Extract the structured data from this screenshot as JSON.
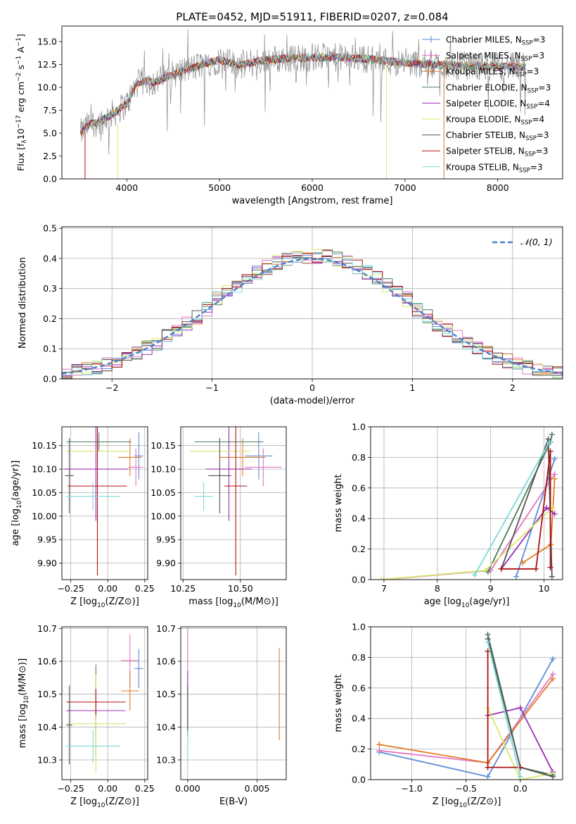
{
  "colors": {
    "chabrier_miles": "#5b8ed6",
    "salpeter_miles": "#e377c2",
    "kroupa_miles": "#e07b27",
    "chabrier_elodie": "#4a7a5a",
    "salpeter_elodie": "#9b30b0",
    "kroupa_elodie": "#d8e86a",
    "chabrier_stelib": "#555555",
    "salpeter_stelib": "#b01010",
    "kroupa_stelib": "#7dd8d8",
    "grid": "#b0b0b0",
    "gauss": "#4a7fd0"
  },
  "chart_data": [
    {
      "id": "spectrum",
      "type": "line",
      "title": "PLATE=0452, MJD=51911, FIBERID=0207, z=0.084",
      "xlabel": "wavelength [Angstrom, rest frame]",
      "ylabel": "Flux [f_λ10^-17 erg cm^-2 s^-1 A^-1]",
      "xlim": [
        3300,
        8700
      ],
      "ylim": [
        0,
        16.7
      ],
      "xticks": [
        4000,
        5000,
        6000,
        7000,
        8000
      ],
      "yticks": [
        0.0,
        2.5,
        5.0,
        7.5,
        10.0,
        12.5,
        15.0
      ],
      "grid": false,
      "legend_position": "right",
      "legend": [
        {
          "key": "chabrier_miles",
          "label": "Chabrier MILES, N",
          "sub": "SSP",
          "tail": "=3"
        },
        {
          "key": "salpeter_miles",
          "label": "Salpeter MILES, N",
          "sub": "SSP",
          "tail": "=3"
        },
        {
          "key": "kroupa_miles",
          "label": "Kroupa MILES, N",
          "sub": "SSP",
          "tail": "=3"
        },
        {
          "key": "chabrier_elodie",
          "label": "Chabrier ELODIE, N",
          "sub": "SSP",
          "tail": "=3"
        },
        {
          "key": "salpeter_elodie",
          "label": "Salpeter ELODIE, N",
          "sub": "SSP",
          "tail": "=4"
        },
        {
          "key": "kroupa_elodie",
          "label": "Kroupa ELODIE, N",
          "sub": "SSP",
          "tail": "=4"
        },
        {
          "key": "chabrier_stelib",
          "label": "Chabrier STELIB, N",
          "sub": "SSP",
          "tail": "=3"
        },
        {
          "key": "salpeter_stelib",
          "label": "Salpeter STELIB, N",
          "sub": "SSP",
          "tail": "=3"
        },
        {
          "key": "kroupa_stelib",
          "label": "Kroupa STELIB, N",
          "sub": "SSP",
          "tail": "=3"
        }
      ],
      "continuum": {
        "x": [
          3500,
          3600,
          3700,
          3800,
          3900,
          4000,
          4100,
          4200,
          4300,
          4400,
          4600,
          4800,
          5000,
          5200,
          5500,
          6000,
          6500,
          7000,
          7500,
          8000,
          8300
        ],
        "y": [
          5.0,
          6.0,
          6.2,
          6.8,
          7.5,
          8.2,
          10.3,
          10.8,
          10.5,
          11.0,
          11.8,
          12.4,
          13.0,
          12.4,
          13.0,
          13.3,
          13.2,
          12.7,
          12.4,
          12.3,
          12.2
        ]
      },
      "verticals": [
        {
          "x": 3550,
          "y0": 0,
          "y1": 5,
          "key": "salpeter_stelib"
        },
        {
          "x": 3900,
          "y0": 0,
          "y1": 6,
          "key": "kroupa_elodie"
        },
        {
          "x": 6800,
          "y0": 0,
          "y1": 13,
          "key": "kroupa_elodie"
        },
        {
          "x": 7420,
          "y0": 0,
          "y1": 13,
          "key": "kroupa_miles"
        }
      ]
    },
    {
      "id": "residuals",
      "type": "line",
      "xlabel": "(data-model)/error",
      "ylabel": "Normed distribution",
      "xlim": [
        -2.5,
        2.5
      ],
      "ylim": [
        0,
        0.505
      ],
      "xticks": [
        -2,
        -1,
        0,
        1,
        2
      ],
      "yticks": [
        0.0,
        0.1,
        0.2,
        0.3,
        0.4,
        0.5
      ],
      "grid": true,
      "legend_position": "top-right",
      "legend": [
        {
          "key": "gauss",
          "label": "𝒩(0, 1)"
        }
      ],
      "bin_width": 0.1,
      "bin_start": -2.5
    },
    {
      "id": "age_vs_Z",
      "type": "scatter",
      "xlabel": "Z [log10(Z/Z⊙)]",
      "ylabel": "age  [log10(age/yr)]",
      "xlim": [
        -0.31,
        0.27
      ],
      "ylim": [
        9.865,
        10.19
      ],
      "xticks": [
        -0.25,
        0.0,
        0.25
      ],
      "xticklabels": [
        "−0.25",
        "0.00",
        "0.25"
      ],
      "yticks": [
        9.9,
        9.95,
        10.0,
        10.05,
        10.1,
        10.15
      ],
      "yticklabels": [
        "9.90",
        "9.95",
        "10.00",
        "10.05",
        "10.10",
        "10.15"
      ],
      "grid": true,
      "points": [
        {
          "key": "chabrier_miles",
          "x": 0.21,
          "xerr": 0.03,
          "y": 10.128,
          "yerr": 0.05
        },
        {
          "key": "salpeter_miles",
          "x": 0.19,
          "xerr": 0.05,
          "y": 10.104,
          "yerr": 0.04
        },
        {
          "key": "kroupa_miles",
          "x": 0.15,
          "xerr": 0.08,
          "y": 10.125,
          "yerr": 0.04
        },
        {
          "key": "chabrier_elodie",
          "x": -0.06,
          "xerr": 0.22,
          "y": 10.158,
          "yerr": 0.02
        },
        {
          "key": "salpeter_elodie",
          "x": -0.08,
          "xerr": 0.22,
          "y": 10.1,
          "yerr": 0.11
        },
        {
          "key": "kroupa_elodie",
          "x": -0.07,
          "xerr": 0.21,
          "y": 10.138,
          "yerr": 0.03
        },
        {
          "key": "chabrier_stelib",
          "x": -0.26,
          "xerr": 0.03,
          "y": 10.086,
          "yerr": 0.08
        },
        {
          "key": "salpeter_stelib",
          "x": -0.07,
          "xerr": 0.2,
          "y": 10.064,
          "yerr": 0.19
        },
        {
          "key": "kroupa_stelib",
          "x": -0.1,
          "xerr": 0.18,
          "y": 10.042,
          "yerr": 0.03
        }
      ]
    },
    {
      "id": "age_vs_mass",
      "type": "scatter",
      "xlabel": "mass [log10(M/M⊙)]",
      "xlim": [
        10.24,
        10.7
      ],
      "ylim": [
        9.865,
        10.19
      ],
      "xticks": [
        10.25,
        10.5
      ],
      "xticklabels": [
        "10.25",
        "10.50"
      ],
      "yticks": [
        9.9,
        9.95,
        10.0,
        10.05,
        10.1,
        10.15
      ],
      "yticklabels": [
        "9.90",
        "9.95",
        "10.00",
        "10.05",
        "10.10",
        "10.15"
      ],
      "grid": true,
      "points": [
        {
          "key": "chabrier_miles",
          "x": 10.58,
          "xerr": 0.06,
          "y": 10.128,
          "yerr": 0.05
        },
        {
          "key": "salpeter_miles",
          "x": 10.6,
          "xerr": 0.08,
          "y": 10.104,
          "yerr": 0.04
        },
        {
          "key": "kroupa_miles",
          "x": 10.51,
          "xerr": 0.1,
          "y": 10.125,
          "yerr": 0.04
        },
        {
          "key": "chabrier_elodie",
          "x": 10.45,
          "xerr": 0.15,
          "y": 10.158,
          "yerr": 0.02
        },
        {
          "key": "salpeter_elodie",
          "x": 10.45,
          "xerr": 0.1,
          "y": 10.1,
          "yerr": 0.11
        },
        {
          "key": "kroupa_elodie",
          "x": 10.41,
          "xerr": 0.13,
          "y": 10.138,
          "yerr": 0.03
        },
        {
          "key": "chabrier_stelib",
          "x": 10.41,
          "xerr": 0.05,
          "y": 10.086,
          "yerr": 0.08
        },
        {
          "key": "salpeter_stelib",
          "x": 10.48,
          "xerr": 0.05,
          "y": 10.064,
          "yerr": 0.19
        },
        {
          "key": "kroupa_stelib",
          "x": 10.34,
          "xerr": 0.04,
          "y": 10.042,
          "yerr": 0.03
        }
      ]
    },
    {
      "id": "weight_vs_age",
      "type": "line",
      "xlabel": "age  [log10(age/yr)]",
      "ylabel": "mass weight",
      "xlim": [
        6.75,
        10.35
      ],
      "ylim": [
        0,
        1.0
      ],
      "xticks": [
        7,
        8,
        9,
        10
      ],
      "yticks": [
        0.0,
        0.2,
        0.4,
        0.6,
        0.8,
        1.0
      ],
      "grid": true,
      "series": [
        {
          "key": "chabrier_miles",
          "x": [
            9.48,
            10.2
          ],
          "y": [
            0.02,
            0.79
          ]
        },
        {
          "key": "salpeter_miles",
          "x": [
            7.0,
            9.0,
            10.2
          ],
          "y": [
            0.0,
            0.06,
            0.69
          ]
        },
        {
          "key": "kroupa_miles",
          "x": [
            9.6,
            10.13,
            10.2
          ],
          "y": [
            0.11,
            0.23,
            0.66
          ]
        },
        {
          "key": "chabrier_elodie",
          "x": [
            8.95,
            10.12,
            10.15
          ],
          "y": [
            0.05,
            0.9,
            0.95
          ]
        },
        {
          "key": "salpeter_elodie",
          "x": [
            9.2,
            10.05,
            10.2
          ],
          "y": [
            0.07,
            0.47,
            0.43
          ]
        },
        {
          "key": "kroupa_elodie",
          "x": [
            6.95,
            8.9,
            10.16
          ],
          "y": [
            0.0,
            0.06,
            0.47
          ]
        },
        {
          "key": "chabrier_stelib",
          "x": [
            9.2,
            10.08,
            10.15
          ],
          "y": [
            0.07,
            0.92,
            0.02
          ]
        },
        {
          "key": "salpeter_stelib",
          "x": [
            9.2,
            9.85,
            10.12,
            10.12
          ],
          "y": [
            0.07,
            0.07,
            0.84,
            0.08
          ]
        },
        {
          "key": "kroupa_stelib",
          "x": [
            8.7,
            10.1
          ],
          "y": [
            0.03,
            0.9
          ]
        }
      ]
    },
    {
      "id": "mass_vs_Z",
      "type": "scatter",
      "xlabel": "Z [log10(Z/Z⊙)]",
      "ylabel": "mass [log10(M/M⊙)]",
      "xlim": [
        -0.31,
        0.27
      ],
      "ylim": [
        10.24,
        10.705
      ],
      "xticks": [
        -0.25,
        0.0,
        0.25
      ],
      "xticklabels": [
        "−0.25",
        "0.00",
        "0.25"
      ],
      "yticks": [
        10.3,
        10.4,
        10.5,
        10.6,
        10.7
      ],
      "yticklabels": [
        "10.3",
        "10.4",
        "10.5",
        "10.6",
        "10.7"
      ],
      "grid": true,
      "points": [
        {
          "key": "chabrier_miles",
          "x": 0.21,
          "xerr": 0.03,
          "y": 10.578,
          "yerr": 0.06
        },
        {
          "key": "salpeter_miles",
          "x": 0.15,
          "xerr": 0.06,
          "y": 10.602,
          "yerr": 0.08
        },
        {
          "key": "kroupa_miles",
          "x": 0.15,
          "xerr": 0.06,
          "y": 10.51,
          "yerr": 0.06
        },
        {
          "key": "chabrier_elodie",
          "x": -0.08,
          "xerr": 0.2,
          "y": 10.45,
          "yerr": 0.14
        },
        {
          "key": "salpeter_elodie",
          "x": -0.08,
          "xerr": 0.2,
          "y": 10.45,
          "yerr": 0.09
        },
        {
          "key": "kroupa_elodie",
          "x": -0.08,
          "xerr": 0.2,
          "y": 10.41,
          "yerr": 0.15
        },
        {
          "key": "chabrier_stelib",
          "x": -0.26,
          "xerr": 0.02,
          "y": 10.406,
          "yerr": 0.12
        },
        {
          "key": "salpeter_stelib",
          "x": -0.08,
          "xerr": 0.2,
          "y": 10.476,
          "yerr": 0.04
        },
        {
          "key": "kroupa_stelib",
          "x": -0.1,
          "xerr": 0.18,
          "y": 10.342,
          "yerr": 0.05
        }
      ]
    },
    {
      "id": "mass_vs_ebv",
      "type": "scatter",
      "xlabel": "E(B-V)",
      "xlim": [
        -0.0005,
        0.0071
      ],
      "ylim": [
        10.24,
        10.705
      ],
      "xticks": [
        0.0,
        0.005
      ],
      "xticklabels": [
        "0.000",
        "0.005"
      ],
      "yticks": [
        10.3,
        10.4,
        10.5,
        10.6,
        10.7
      ],
      "yticklabels": [
        "10.3",
        "10.4",
        "10.5",
        "10.6",
        "10.7"
      ],
      "grid": true,
      "points": [
        {
          "key": "salpeter_miles",
          "x": 0.0,
          "y": 10.54,
          "yerr": 0.16
        },
        {
          "key": "salpeter_elodie",
          "x": 0.0,
          "y": 10.47,
          "yerr": 0.1
        },
        {
          "key": "chabrier_stelib",
          "x": 0.0,
          "y": 10.45,
          "yerr": 0.08
        },
        {
          "key": "kroupa_stelib",
          "x": 0.0,
          "y": 10.34,
          "yerr": 0.05
        },
        {
          "key": "kroupa_miles",
          "x": 0.0066,
          "y": 10.5,
          "yerr": 0.14
        }
      ]
    },
    {
      "id": "weight_vs_Z",
      "type": "line",
      "xlabel": "Z [log10(Z/Z⊙)]",
      "ylabel": "mass weight",
      "xlim": [
        -1.38,
        0.39
      ],
      "ylim": [
        0,
        1.0
      ],
      "xticks": [
        -1.0,
        -0.5,
        0.0
      ],
      "xticklabels": [
        "−1.0",
        "−0.5",
        "0.0"
      ],
      "yticks": [
        0.0,
        0.2,
        0.4,
        0.6,
        0.8,
        1.0
      ],
      "yticklabels": [
        "0.0",
        "0.2",
        "0.4",
        "0.6",
        "0.8",
        "1.0"
      ],
      "grid": true,
      "series": [
        {
          "key": "chabrier_miles",
          "x": [
            -1.3,
            -0.3,
            0.3
          ],
          "y": [
            0.18,
            0.02,
            0.79
          ]
        },
        {
          "key": "salpeter_miles",
          "x": [
            -1.3,
            -0.3,
            0.3
          ],
          "y": [
            0.19,
            0.11,
            0.69
          ]
        },
        {
          "key": "kroupa_miles",
          "x": [
            -1.3,
            -0.3,
            0.3
          ],
          "y": [
            0.23,
            0.11,
            0.66
          ]
        },
        {
          "key": "chabrier_elodie",
          "x": [
            -0.3,
            0.0,
            0.3
          ],
          "y": [
            0.95,
            0.08,
            0.03
          ]
        },
        {
          "key": "salpeter_elodie",
          "x": [
            -0.3,
            0.0,
            0.3
          ],
          "y": [
            0.42,
            0.47,
            0.05
          ]
        },
        {
          "key": "kroupa_elodie",
          "x": [
            -0.3,
            0.0,
            0.3
          ],
          "y": [
            0.47,
            0.0,
            0.04
          ]
        },
        {
          "key": "chabrier_stelib",
          "x": [
            -0.3,
            0.0,
            0.3
          ],
          "y": [
            0.92,
            0.08,
            0.02
          ]
        },
        {
          "key": "salpeter_stelib",
          "x": [
            -0.3,
            -0.3,
            0.0
          ],
          "y": [
            0.84,
            0.08,
            0.08
          ]
        },
        {
          "key": "kroupa_stelib",
          "x": [
            -0.3,
            0.0
          ],
          "y": [
            0.9,
            0.02
          ]
        }
      ]
    }
  ]
}
